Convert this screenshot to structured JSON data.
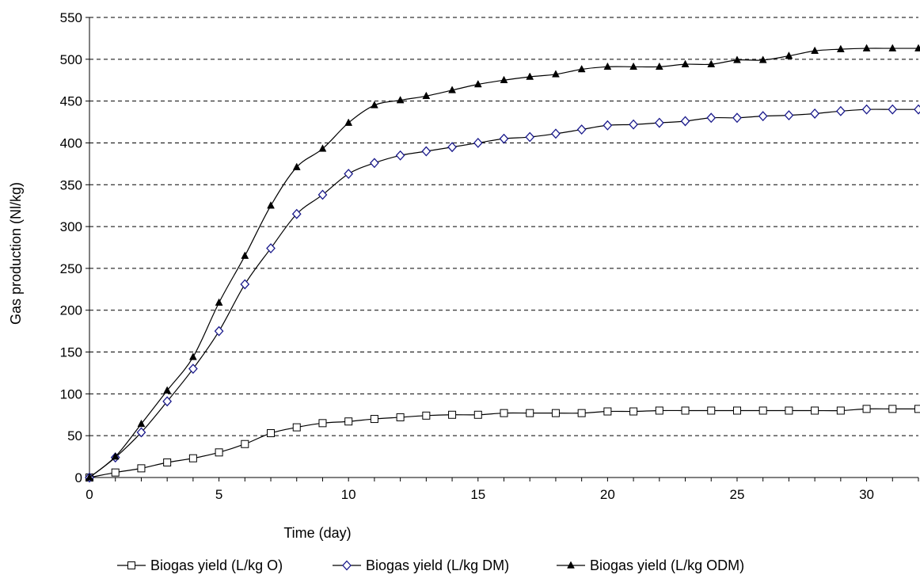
{
  "chart_data": {
    "type": "line",
    "title": "",
    "xlabel": "Time (day)",
    "ylabel": "Gas  production (Nl/kg)",
    "xlim": [
      0,
      32
    ],
    "ylim": [
      0,
      550
    ],
    "x_ticks": [
      "0",
      "5",
      "10",
      "15",
      "20",
      "25",
      "30"
    ],
    "y_ticks": [
      "0",
      "50",
      "100",
      "150",
      "200",
      "250",
      "300",
      "350",
      "400",
      "450",
      "500",
      "550"
    ],
    "grid": "horizontal dashed",
    "legend_position": "bottom",
    "x": [
      0,
      1,
      2,
      3,
      4,
      5,
      6,
      7,
      8,
      9,
      10,
      11,
      12,
      13,
      14,
      15,
      16,
      17,
      18,
      19,
      20,
      21,
      22,
      23,
      24,
      25,
      26,
      27,
      28,
      29,
      30,
      31,
      32
    ],
    "series": [
      {
        "name": "Biogas yield (L/kg O)",
        "marker": "square-open",
        "values": [
          0,
          6,
          11,
          18,
          23,
          30,
          40,
          53,
          60,
          65,
          67,
          70,
          72,
          74,
          75,
          75,
          77,
          77,
          77,
          77,
          79,
          79,
          80,
          80,
          80,
          80,
          80,
          80,
          80,
          80,
          82,
          82,
          82
        ]
      },
      {
        "name": "Biogas yield (L/kg DM)",
        "marker": "diamond-open",
        "values": [
          0,
          24,
          54,
          91,
          130,
          175,
          231,
          274,
          315,
          338,
          363,
          376,
          385,
          390,
          395,
          400,
          405,
          407,
          411,
          416,
          421,
          422,
          424,
          426,
          430,
          430,
          432,
          433,
          435,
          438,
          440,
          440,
          440
        ]
      },
      {
        "name": "Biogas yield (L/kg ODM)",
        "marker": "triangle-filled",
        "values": [
          0,
          25,
          64,
          104,
          144,
          209,
          265,
          325,
          371,
          393,
          424,
          445,
          451,
          456,
          463,
          470,
          475,
          479,
          482,
          488,
          491,
          491,
          491,
          494,
          494,
          499,
          499,
          504,
          510,
          512,
          513,
          513,
          513
        ]
      }
    ]
  }
}
